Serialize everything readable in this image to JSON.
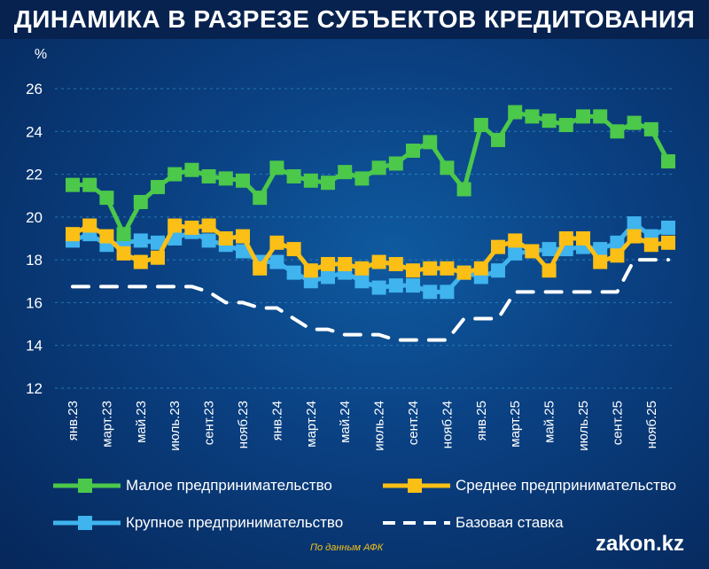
{
  "chart_data": {
    "type": "line",
    "title": "ДИНАМИКА В РАЗРЕЗЕ СУБЪЕКТОВ КРЕДИТОВАНИЯ",
    "ylabel": "%",
    "ylim": [
      12,
      26
    ],
    "yticks": [
      "12",
      "14",
      "16",
      "18",
      "20",
      "22",
      "24",
      "26"
    ],
    "grid": true,
    "xtick_labels": [
      "янв.23",
      "март.23",
      "май.23",
      "июль.23",
      "сент.23",
      "нояб.23",
      "янв.24",
      "март.24",
      "май.24",
      "июль.24",
      "сент.24",
      "нояб.24",
      "янв.25",
      "март.25",
      "май.25",
      "июль.25",
      "сент.25",
      "нояб.25"
    ],
    "x_months": 36,
    "legend_position": "bottom",
    "series": [
      {
        "name": "Малое предпринимательство",
        "color": "#4cc84a",
        "marker": "square",
        "values": [
          21.5,
          21.5,
          20.9,
          19.2,
          20.7,
          21.4,
          22.0,
          22.2,
          21.9,
          21.8,
          21.7,
          20.9,
          22.3,
          21.9,
          21.7,
          21.6,
          22.1,
          21.8,
          22.3,
          22.5,
          23.1,
          23.5,
          22.3,
          21.3,
          24.3,
          23.6,
          24.9,
          24.7,
          24.5,
          24.3,
          24.7,
          24.7,
          24.0,
          24.4,
          24.1,
          22.6
        ]
      },
      {
        "name": "Среднее предпринимательство",
        "color": "#fbbf16",
        "marker": "square",
        "values": [
          19.2,
          19.6,
          19.1,
          18.3,
          17.9,
          18.1,
          19.6,
          19.5,
          19.6,
          19.0,
          19.1,
          17.6,
          18.8,
          18.5,
          17.5,
          17.8,
          17.8,
          17.6,
          17.9,
          17.8,
          17.5,
          17.6,
          17.6,
          17.4,
          17.6,
          18.6,
          18.9,
          18.4,
          17.5,
          19.0,
          19.0,
          17.9,
          18.2,
          19.1,
          18.7,
          18.8
        ]
      },
      {
        "name": "Крупное предпринимательство",
        "color": "#3fb4ee",
        "marker": "square",
        "values": [
          18.9,
          19.2,
          18.7,
          18.8,
          18.9,
          18.8,
          19.0,
          19.3,
          18.9,
          18.7,
          18.4,
          17.9,
          17.9,
          17.4,
          17.0,
          17.2,
          17.4,
          17.0,
          16.7,
          16.8,
          16.8,
          16.5,
          16.5,
          17.4,
          17.2,
          17.5,
          18.3,
          18.4,
          18.5,
          18.5,
          18.6,
          18.5,
          18.8,
          19.7,
          19.1,
          19.5
        ]
      },
      {
        "name": "Базовая ставка",
        "color": "#ffffff",
        "marker": "none",
        "dashed": true,
        "values": [
          16.75,
          16.75,
          16.75,
          16.75,
          16.75,
          16.75,
          16.75,
          16.75,
          16.5,
          16.0,
          16.0,
          15.75,
          15.75,
          15.25,
          14.75,
          14.75,
          14.5,
          14.5,
          14.5,
          14.25,
          14.25,
          14.25,
          14.25,
          15.25,
          15.25,
          15.25,
          16.5,
          16.5,
          16.5,
          16.5,
          16.5,
          16.5,
          16.5,
          18.0,
          18.0,
          18.0
        ]
      }
    ]
  },
  "footer": {
    "source": "По данным АФК",
    "logo": "zakon.kz"
  }
}
